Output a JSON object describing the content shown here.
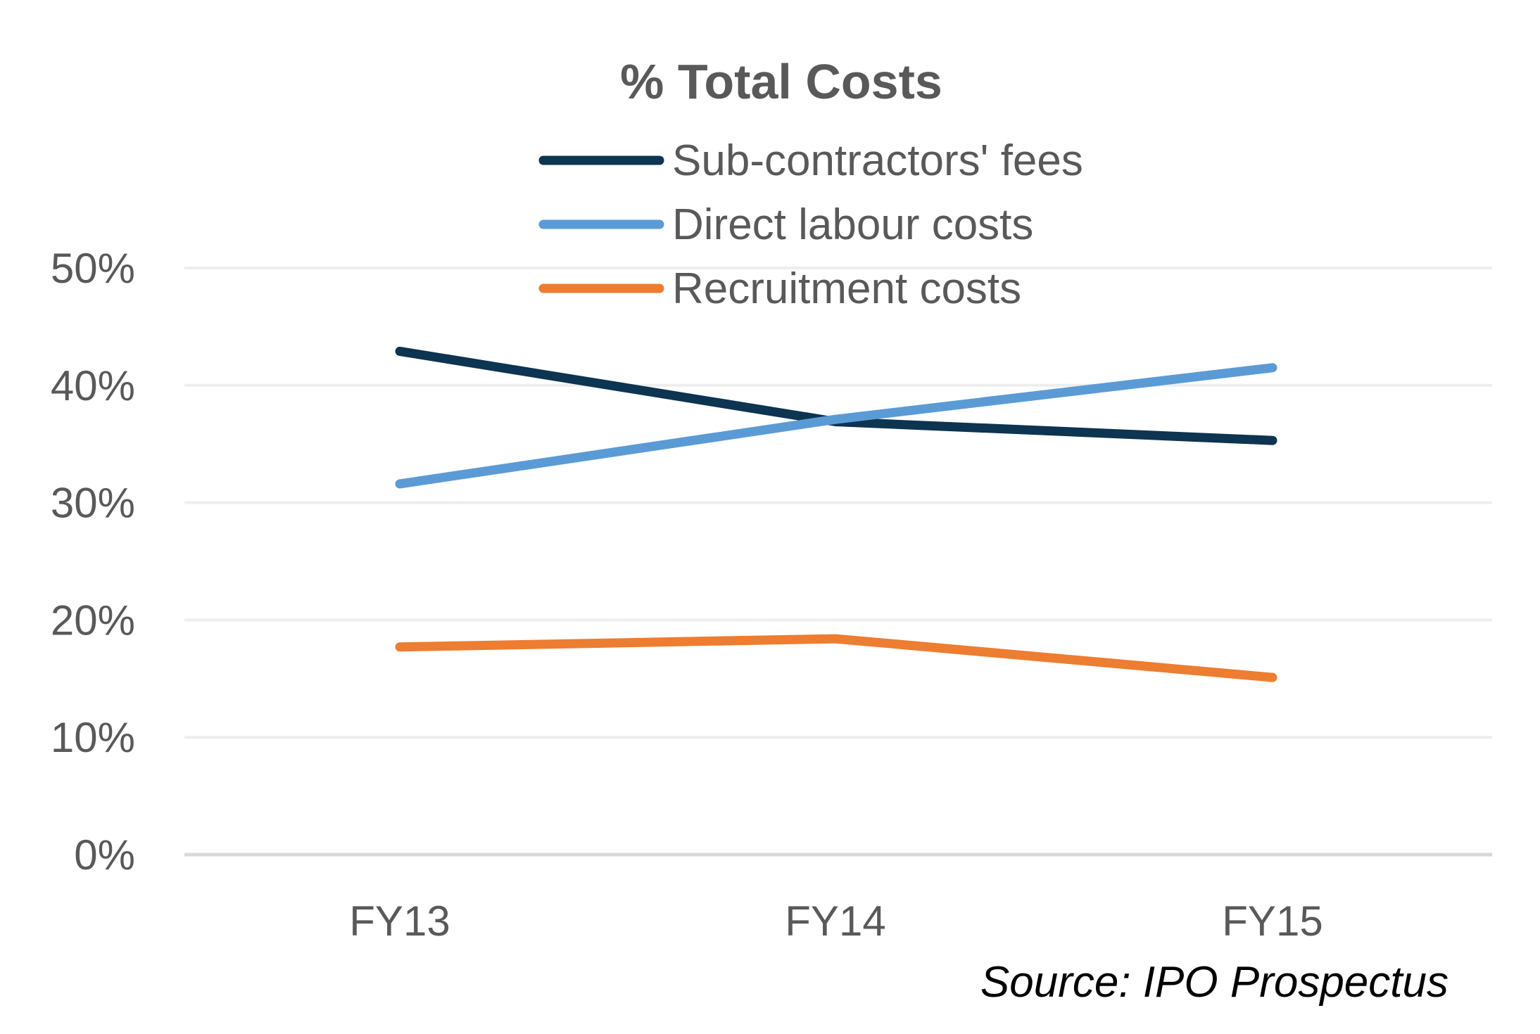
{
  "chart_data": {
    "type": "line",
    "title": "% Total Costs",
    "categories": [
      "FY13",
      "FY14",
      "FY15"
    ],
    "series": [
      {
        "name": "Sub-contractors' fees",
        "values": [
          42.9,
          36.9,
          35.3
        ],
        "color": "#0d3451"
      },
      {
        "name": "Direct labour costs",
        "values": [
          31.6,
          37.1,
          41.5
        ],
        "color": "#5b9bd5"
      },
      {
        "name": "Recruitment costs",
        "values": [
          17.7,
          18.4,
          15.1
        ],
        "color": "#ed7d31"
      }
    ],
    "y_ticks": [
      "0%",
      "10%",
      "20%",
      "30%",
      "40%",
      "50%"
    ],
    "ylim": [
      0,
      50
    ],
    "grid": true,
    "legend_position": "top-center",
    "annotation": "Source: IPO Prospectus",
    "xlabel": "",
    "ylabel": ""
  }
}
